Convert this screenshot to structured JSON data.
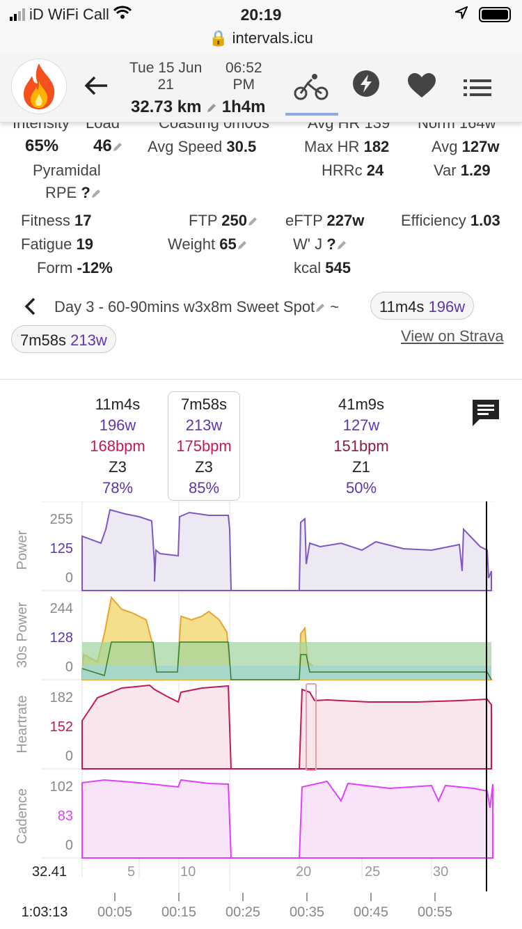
{
  "status_bar": {
    "carrier": "iD WiFi Call",
    "time": "20:19",
    "url": "intervals.icu"
  },
  "header": {
    "date_line1": "Tue 15 Jun",
    "date_line2": "21",
    "time_line1": "06:52",
    "time_line2": "PM",
    "distance": "32.73 km",
    "duration": "1h4m"
  },
  "stats": {
    "cut_row": [
      "Intensity",
      "Load",
      "Coasting 0m06s",
      "Avg HR 139",
      "Norm 164w"
    ],
    "intensity": "65%",
    "load": "46",
    "avg_speed_label": "Avg Speed",
    "avg_speed": "30.5",
    "max_hr_label": "Max HR",
    "max_hr": "182",
    "avg_label": "Avg",
    "avg": "127w",
    "pyramidal": "Pyramidal",
    "hrrc_label": "HRRc",
    "hrrc": "24",
    "var_label": "Var",
    "var": "1.29",
    "rpe_label": "RPE",
    "rpe": "?",
    "fitness_label": "Fitness",
    "fitness": "17",
    "ftp_label": "FTP",
    "ftp": "250",
    "eftp_label": "eFTP",
    "eftp": "227w",
    "efficiency_label": "Efficiency",
    "efficiency": "1.03",
    "fatigue_label": "Fatigue",
    "fatigue": "19",
    "weight_label": "Weight",
    "weight": "65",
    "wj_label": "W' J",
    "wj": "?",
    "form_label": "Form",
    "form": "-12%",
    "kcal_label": "kcal",
    "kcal": "545"
  },
  "workout": {
    "name": "Day 3 - 60-90mins w3x8m Sweet Spot",
    "sep": "~",
    "pill1_time": "11m4s",
    "pill1_watts": "196w",
    "pill2_time": "7m58s",
    "pill2_watts": "213w",
    "strava": "View on Strava"
  },
  "intervals": [
    {
      "time": "11m4s",
      "watts": "196w",
      "bpm": "168bpm",
      "zone": "Z3",
      "pct": "78%"
    },
    {
      "time": "7m58s",
      "watts": "213w",
      "bpm": "175bpm",
      "zone": "Z3",
      "pct": "85%"
    },
    {
      "time": "41m9s",
      "watts": "127w",
      "bpm": "151bpm",
      "zone": "Z1",
      "pct": "50%"
    }
  ],
  "colors": {
    "power": "#7e57c2",
    "hr": "#c2185b",
    "cadence": "#e040fb",
    "strava": "#555"
  },
  "chart_data": [
    {
      "type": "line",
      "ylabel": "Power",
      "yticks": [
        "255",
        "125",
        "0"
      ],
      "x": [
        0,
        5,
        6,
        15,
        16,
        24,
        25,
        29,
        30,
        35,
        36,
        37,
        38,
        45,
        55,
        60,
        62,
        63
      ],
      "y": [
        80,
        120,
        230,
        230,
        40,
        255,
        240,
        0,
        0,
        0,
        220,
        90,
        100,
        90,
        95,
        100,
        60,
        20
      ]
    },
    {
      "type": "area",
      "ylabel": "30s Power",
      "yticks": [
        "244",
        "128",
        "0"
      ]
    },
    {
      "type": "line",
      "ylabel": "Heartrate",
      "yticks": [
        "182",
        "152",
        "0"
      ]
    },
    {
      "type": "line",
      "ylabel": "Cadence",
      "yticks": [
        "102",
        "83",
        "0"
      ]
    }
  ],
  "axis": {
    "km_left": "32.41",
    "km_ticks": [
      "5",
      "10",
      "20",
      "25",
      "30"
    ],
    "time_left": "1:03:13",
    "time_ticks": [
      "00:05",
      "00:15",
      "00:25",
      "00:35",
      "00:45",
      "00:55"
    ]
  }
}
